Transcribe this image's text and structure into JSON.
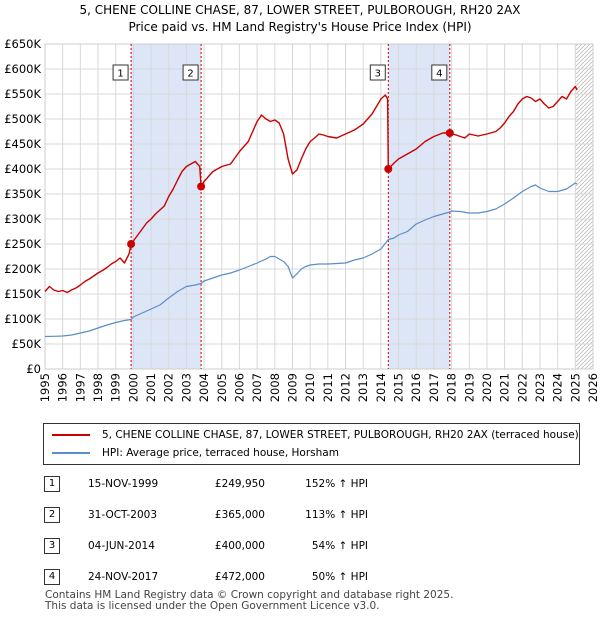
{
  "title": {
    "line1": "5, CHENE COLLINE CHASE, 87, LOWER STREET, PULBOROUGH, RH20 2AX",
    "line2": "Price paid vs. HM Land Registry's House Price Index (HPI)"
  },
  "chart_data": {
    "type": "line",
    "title": "Price paid vs. HM Land Registry's House Price Index (HPI)",
    "xlim": [
      1995,
      2026
    ],
    "ylim": [
      0,
      650000
    ],
    "x_ticks": [
      "1995",
      "1996",
      "1997",
      "1998",
      "1999",
      "2000",
      "2001",
      "2002",
      "2003",
      "2004",
      "2005",
      "2006",
      "2007",
      "2008",
      "2009",
      "2010",
      "2011",
      "2012",
      "2013",
      "2014",
      "2015",
      "2016",
      "2017",
      "2018",
      "2019",
      "2020",
      "2021",
      "2022",
      "2023",
      "2024",
      "2025",
      "2026"
    ],
    "y_ticks": [
      {
        "value": 0,
        "label": "£0"
      },
      {
        "value": 50000,
        "label": "£50K"
      },
      {
        "value": 100000,
        "label": "£100K"
      },
      {
        "value": 150000,
        "label": "£150K"
      },
      {
        "value": 200000,
        "label": "£200K"
      },
      {
        "value": 250000,
        "label": "£250K"
      },
      {
        "value": 300000,
        "label": "£300K"
      },
      {
        "value": 350000,
        "label": "£350K"
      },
      {
        "value": 400000,
        "label": "£400K"
      },
      {
        "value": 450000,
        "label": "£450K"
      },
      {
        "value": 500000,
        "label": "£500K"
      },
      {
        "value": 550000,
        "label": "£550K"
      },
      {
        "value": 600000,
        "label": "£600K"
      },
      {
        "value": 650000,
        "label": "£650K"
      }
    ],
    "shaded_ranges": [
      [
        1999.87,
        2003.83
      ],
      [
        2014.42,
        2017.9
      ]
    ],
    "future_hatch_from": 2025.0,
    "series": [
      {
        "name": "5, CHENE COLLINE CHASE, 87, LOWER STREET, PULBOROUGH, RH20 2AX (terraced house)",
        "color": "#cc0000",
        "points": [
          [
            1995.0,
            155000
          ],
          [
            1995.25,
            165000
          ],
          [
            1995.5,
            158000
          ],
          [
            1995.75,
            155000
          ],
          [
            1996.0,
            157000
          ],
          [
            1996.25,
            153000
          ],
          [
            1996.5,
            158000
          ],
          [
            1996.75,
            162000
          ],
          [
            1997.0,
            168000
          ],
          [
            1997.25,
            175000
          ],
          [
            1997.5,
            180000
          ],
          [
            1997.75,
            186000
          ],
          [
            1998.0,
            192000
          ],
          [
            1998.25,
            197000
          ],
          [
            1998.5,
            203000
          ],
          [
            1998.75,
            210000
          ],
          [
            1999.0,
            215000
          ],
          [
            1999.25,
            222000
          ],
          [
            1999.5,
            212000
          ],
          [
            1999.75,
            230000
          ],
          [
            1999.87,
            249950
          ],
          [
            2000.25,
            268000
          ],
          [
            2000.5,
            280000
          ],
          [
            2000.75,
            292000
          ],
          [
            2001.0,
            300000
          ],
          [
            2001.25,
            310000
          ],
          [
            2001.5,
            318000
          ],
          [
            2001.75,
            326000
          ],
          [
            2002.0,
            345000
          ],
          [
            2002.25,
            360000
          ],
          [
            2002.5,
            378000
          ],
          [
            2002.75,
            395000
          ],
          [
            2003.0,
            405000
          ],
          [
            2003.25,
            410000
          ],
          [
            2003.5,
            415000
          ],
          [
            2003.75,
            405000
          ],
          [
            2003.83,
            365000
          ],
          [
            2004.0,
            375000
          ],
          [
            2004.5,
            395000
          ],
          [
            2005.0,
            405000
          ],
          [
            2005.5,
            410000
          ],
          [
            2006.0,
            435000
          ],
          [
            2006.5,
            455000
          ],
          [
            2006.75,
            475000
          ],
          [
            2007.0,
            495000
          ],
          [
            2007.25,
            508000
          ],
          [
            2007.5,
            500000
          ],
          [
            2007.75,
            495000
          ],
          [
            2008.0,
            498000
          ],
          [
            2008.25,
            492000
          ],
          [
            2008.5,
            470000
          ],
          [
            2008.75,
            420000
          ],
          [
            2009.0,
            390000
          ],
          [
            2009.25,
            398000
          ],
          [
            2009.5,
            420000
          ],
          [
            2009.75,
            440000
          ],
          [
            2010.0,
            455000
          ],
          [
            2010.25,
            462000
          ],
          [
            2010.5,
            470000
          ],
          [
            2010.75,
            468000
          ],
          [
            2011.0,
            465000
          ],
          [
            2011.5,
            462000
          ],
          [
            2012.0,
            470000
          ],
          [
            2012.5,
            478000
          ],
          [
            2013.0,
            490000
          ],
          [
            2013.5,
            510000
          ],
          [
            2013.75,
            525000
          ],
          [
            2014.0,
            540000
          ],
          [
            2014.25,
            548000
          ],
          [
            2014.38,
            540000
          ],
          [
            2014.42,
            400000
          ],
          [
            2014.75,
            412000
          ],
          [
            2015.0,
            420000
          ],
          [
            2015.5,
            430000
          ],
          [
            2016.0,
            440000
          ],
          [
            2016.5,
            455000
          ],
          [
            2017.0,
            465000
          ],
          [
            2017.5,
            472000
          ],
          [
            2017.9,
            472000
          ],
          [
            2018.25,
            468000
          ],
          [
            2018.75,
            462000
          ],
          [
            2019.0,
            470000
          ],
          [
            2019.5,
            466000
          ],
          [
            2020.0,
            470000
          ],
          [
            2020.5,
            475000
          ],
          [
            2020.75,
            482000
          ],
          [
            2021.0,
            492000
          ],
          [
            2021.25,
            505000
          ],
          [
            2021.5,
            515000
          ],
          [
            2021.75,
            530000
          ],
          [
            2022.0,
            540000
          ],
          [
            2022.25,
            545000
          ],
          [
            2022.5,
            542000
          ],
          [
            2022.75,
            535000
          ],
          [
            2023.0,
            540000
          ],
          [
            2023.25,
            530000
          ],
          [
            2023.5,
            522000
          ],
          [
            2023.75,
            525000
          ],
          [
            2024.0,
            535000
          ],
          [
            2024.25,
            545000
          ],
          [
            2024.5,
            540000
          ],
          [
            2024.75,
            555000
          ],
          [
            2025.0,
            565000
          ],
          [
            2025.1,
            558000
          ]
        ]
      },
      {
        "name": "HPI: Average price, terraced house, Horsham",
        "color": "#5b8dc9",
        "points": [
          [
            1995.0,
            65000
          ],
          [
            1995.5,
            65500
          ],
          [
            1996.0,
            66000
          ],
          [
            1996.5,
            68000
          ],
          [
            1997.0,
            72000
          ],
          [
            1997.5,
            76000
          ],
          [
            1998.0,
            82000
          ],
          [
            1998.5,
            88000
          ],
          [
            1999.0,
            93000
          ],
          [
            1999.5,
            97000
          ],
          [
            1999.87,
            99000
          ],
          [
            2000.0,
            104000
          ],
          [
            2000.5,
            112000
          ],
          [
            2001.0,
            120000
          ],
          [
            2001.5,
            128000
          ],
          [
            2002.0,
            142000
          ],
          [
            2002.5,
            155000
          ],
          [
            2003.0,
            165000
          ],
          [
            2003.5,
            168000
          ],
          [
            2003.83,
            171000
          ],
          [
            2004.0,
            176000
          ],
          [
            2004.5,
            182000
          ],
          [
            2005.0,
            188000
          ],
          [
            2005.5,
            192000
          ],
          [
            2006.0,
            198000
          ],
          [
            2006.5,
            205000
          ],
          [
            2007.0,
            212000
          ],
          [
            2007.5,
            220000
          ],
          [
            2007.75,
            225000
          ],
          [
            2008.0,
            225000
          ],
          [
            2008.5,
            215000
          ],
          [
            2008.75,
            205000
          ],
          [
            2009.0,
            182000
          ],
          [
            2009.25,
            190000
          ],
          [
            2009.5,
            200000
          ],
          [
            2009.75,
            205000
          ],
          [
            2010.0,
            208000
          ],
          [
            2010.5,
            210000
          ],
          [
            2011.0,
            210000
          ],
          [
            2011.5,
            211000
          ],
          [
            2012.0,
            212000
          ],
          [
            2012.5,
            218000
          ],
          [
            2013.0,
            222000
          ],
          [
            2013.5,
            230000
          ],
          [
            2014.0,
            240000
          ],
          [
            2014.42,
            259000
          ],
          [
            2014.75,
            262000
          ],
          [
            2015.0,
            268000
          ],
          [
            2015.5,
            275000
          ],
          [
            2016.0,
            290000
          ],
          [
            2016.5,
            298000
          ],
          [
            2017.0,
            305000
          ],
          [
            2017.5,
            310000
          ],
          [
            2017.9,
            314000
          ],
          [
            2018.0,
            316000
          ],
          [
            2018.5,
            315000
          ],
          [
            2019.0,
            312000
          ],
          [
            2019.5,
            312000
          ],
          [
            2020.0,
            315000
          ],
          [
            2020.5,
            320000
          ],
          [
            2021.0,
            330000
          ],
          [
            2021.5,
            342000
          ],
          [
            2022.0,
            355000
          ],
          [
            2022.5,
            365000
          ],
          [
            2022.75,
            368000
          ],
          [
            2023.0,
            362000
          ],
          [
            2023.5,
            355000
          ],
          [
            2024.0,
            355000
          ],
          [
            2024.5,
            360000
          ],
          [
            2025.0,
            372000
          ],
          [
            2025.1,
            370000
          ]
        ]
      }
    ],
    "sale_markers": [
      {
        "label": "1",
        "year": 1999.87,
        "value": 249950
      },
      {
        "label": "2",
        "year": 2003.83,
        "value": 365000
      },
      {
        "label": "3",
        "year": 2014.42,
        "value": 400000
      },
      {
        "label": "4",
        "year": 2017.9,
        "value": 472000
      }
    ]
  },
  "legend": {
    "property_label": "5, CHENE COLLINE CHASE, 87, LOWER STREET, PULBOROUGH, RH20 2AX (terraced house)",
    "hpi_label": "HPI: Average price, terraced house, Horsham"
  },
  "sales": [
    {
      "num": "1",
      "date": "15-NOV-1999",
      "price": "£249,950",
      "hpi": "152% ↑ HPI"
    },
    {
      "num": "2",
      "date": "31-OCT-2003",
      "price": "£365,000",
      "hpi": "113% ↑ HPI"
    },
    {
      "num": "3",
      "date": "04-JUN-2014",
      "price": "£400,000",
      "hpi": "54% ↑ HPI"
    },
    {
      "num": "4",
      "date": "24-NOV-2017",
      "price": "£472,000",
      "hpi": "50% ↑ HPI"
    }
  ],
  "footer": {
    "line1": "Contains HM Land Registry data © Crown copyright and database right 2025.",
    "line2": "This data is licensed under the Open Government Licence v3.0."
  }
}
